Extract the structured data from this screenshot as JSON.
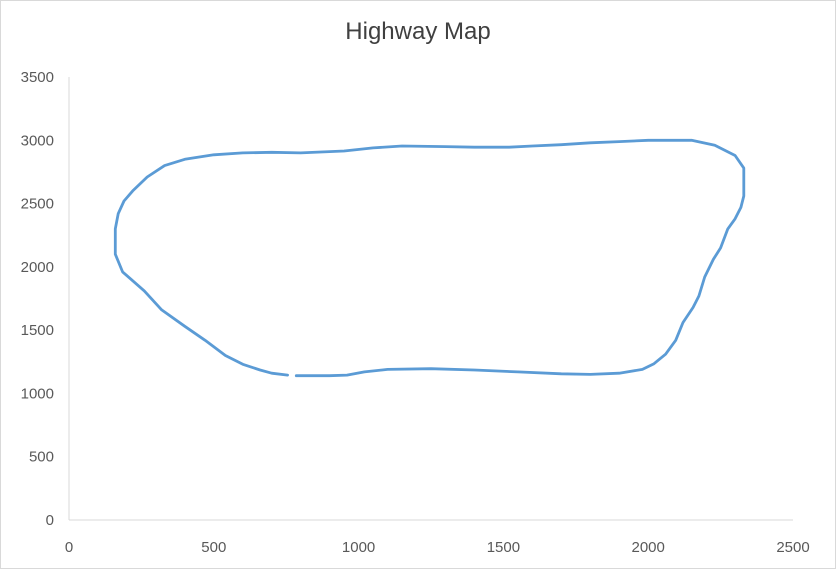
{
  "chart_data": {
    "type": "scatter",
    "title": "Highway Map",
    "xlabel": "",
    "ylabel": "",
    "xlim": [
      0,
      2500
    ],
    "ylim": [
      0,
      3500
    ],
    "x_ticks": [
      0,
      500,
      1000,
      1500,
      2000,
      2500
    ],
    "y_ticks": [
      0,
      500,
      1000,
      1500,
      2000,
      2500,
      3000,
      3500
    ],
    "grid": false,
    "legend": "none",
    "line_color": "#5b9bd5",
    "series": [
      {
        "points": [
          [
            785,
            1140
          ],
          [
            900,
            1140
          ],
          [
            960,
            1145
          ],
          [
            1020,
            1170
          ],
          [
            1100,
            1190
          ],
          [
            1250,
            1195
          ],
          [
            1400,
            1185
          ],
          [
            1550,
            1170
          ],
          [
            1700,
            1155
          ],
          [
            1800,
            1150
          ],
          [
            1900,
            1160
          ],
          [
            1980,
            1190
          ],
          [
            2020,
            1235
          ],
          [
            2060,
            1310
          ],
          [
            2095,
            1420
          ],
          [
            2120,
            1560
          ],
          [
            2155,
            1680
          ],
          [
            2175,
            1770
          ],
          [
            2195,
            1920
          ],
          [
            2225,
            2060
          ],
          [
            2250,
            2150
          ],
          [
            2275,
            2300
          ],
          [
            2300,
            2380
          ],
          [
            2320,
            2470
          ],
          [
            2330,
            2560
          ],
          [
            2330,
            2780
          ],
          [
            2300,
            2880
          ],
          [
            2230,
            2960
          ],
          [
            2150,
            3000
          ],
          [
            2000,
            3000
          ],
          [
            1900,
            2990
          ],
          [
            1800,
            2980
          ],
          [
            1700,
            2965
          ],
          [
            1600,
            2955
          ],
          [
            1520,
            2945
          ],
          [
            1400,
            2945
          ],
          [
            1300,
            2950
          ],
          [
            1150,
            2955
          ],
          [
            1050,
            2940
          ],
          [
            950,
            2915
          ],
          [
            800,
            2900
          ],
          [
            700,
            2905
          ],
          [
            600,
            2900
          ],
          [
            500,
            2885
          ],
          [
            400,
            2850
          ],
          [
            330,
            2800
          ],
          [
            270,
            2710
          ],
          [
            220,
            2600
          ],
          [
            190,
            2520
          ],
          [
            170,
            2420
          ],
          [
            160,
            2300
          ],
          [
            160,
            2100
          ],
          [
            185,
            1960
          ],
          [
            260,
            1810
          ],
          [
            320,
            1660
          ],
          [
            400,
            1530
          ],
          [
            470,
            1420
          ],
          [
            540,
            1300
          ],
          [
            600,
            1230
          ],
          [
            660,
            1185
          ],
          [
            700,
            1160
          ],
          [
            755,
            1145
          ]
        ]
      }
    ]
  }
}
